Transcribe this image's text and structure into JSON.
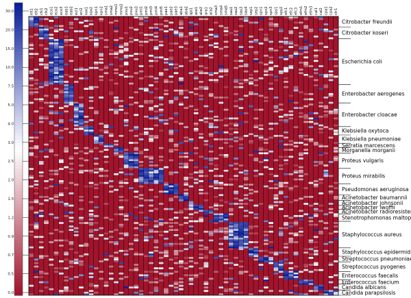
{
  "chart_data": {
    "type": "heatmap",
    "title": "",
    "xlabel": "",
    "ylabel": "",
    "colors": {
      "low": "#a0142c",
      "mid": "#ffffff",
      "high": "#0a1f9c",
      "grid": "#000000",
      "frame": "#000000"
    },
    "color_scale": {
      "ticks": [
        "30.0",
        "20.0",
        "15.0",
        "10.0",
        "7.5",
        "5.0",
        "4.0",
        "3.0",
        "2.5",
        "2.0",
        "1.5",
        "1.2",
        "0.9",
        "0.7",
        "0.5",
        "0.0"
      ],
      "values": [
        30.0,
        20.0,
        15.0,
        10.0,
        7.5,
        5.0,
        4.0,
        3.0,
        2.5,
        2.0,
        1.5,
        1.2,
        0.9,
        0.7,
        0.5,
        0.0
      ]
    },
    "column_labels": [
      "elt1",
      "elt2",
      "clk1",
      "clk2",
      "eco1",
      "eco2",
      "eco3",
      "eab1",
      "eab2",
      "ecl1",
      "ecl2",
      "kox1",
      "kox2",
      "kpn1",
      "kpn2",
      "sma1",
      "sma2",
      "mmo1",
      "mmo2",
      "pvu1",
      "pvu2",
      "pvu3",
      "pmi1",
      "pmi2",
      "pmi3",
      "pmi4",
      "pmi5",
      "pae1",
      "pae2",
      "pae3",
      "aba1",
      "aba2",
      "ajo1",
      "alw1",
      "alw2",
      "ara1",
      "ara2",
      "sma3",
      "sma4",
      "sma5",
      "sau1",
      "sau2",
      "sau3",
      "sau4",
      "sep1",
      "sep2",
      "spn1",
      "spn2",
      "spn3",
      "spy1",
      "spy2",
      "efc1",
      "efc2",
      "efc3",
      "efm1",
      "efm2",
      "efm3",
      "cal1",
      "cal2",
      "cpa1",
      "cpa2",
      "ctr1"
    ],
    "row_groups": [
      {
        "name": "Citrobacter freundii",
        "start": 0.0,
        "end": 0.038,
        "cols": [
          0,
          1
        ]
      },
      {
        "name": "Citrobacter koseri",
        "start": 0.038,
        "end": 0.08,
        "cols": [
          2,
          3
        ]
      },
      {
        "name": "Escherichia coli",
        "start": 0.08,
        "end": 0.245,
        "cols": [
          4,
          5,
          6
        ]
      },
      {
        "name": "Enterobacter aerogenes",
        "start": 0.245,
        "end": 0.31,
        "cols": [
          7,
          8
        ]
      },
      {
        "name": "Enterobacter cloacae",
        "start": 0.31,
        "end": 0.395,
        "cols": [
          9,
          10
        ]
      },
      {
        "name": "Klebsiella oxytoca",
        "start": 0.395,
        "end": 0.425,
        "cols": [
          11,
          12
        ]
      },
      {
        "name": "Klebsiella pneumoniae",
        "start": 0.425,
        "end": 0.455,
        "cols": [
          13,
          14
        ]
      },
      {
        "name": "Serratia marcescens",
        "start": 0.455,
        "end": 0.47,
        "cols": [
          15,
          16
        ]
      },
      {
        "name": "Morganella morganii",
        "start": 0.47,
        "end": 0.49,
        "cols": [
          17,
          18
        ]
      },
      {
        "name": "Proteus vulgaris",
        "start": 0.49,
        "end": 0.545,
        "cols": [
          19,
          20,
          21
        ]
      },
      {
        "name": "Proteus mirabilis",
        "start": 0.545,
        "end": 0.6,
        "cols": [
          22,
          23,
          24,
          25,
          26
        ]
      },
      {
        "name": "Pseudomonas aeruginosa",
        "start": 0.6,
        "end": 0.64,
        "cols": [
          27,
          28,
          29
        ]
      },
      {
        "name": "Acinetobacter baumannii",
        "start": 0.64,
        "end": 0.66,
        "cols": [
          30,
          31
        ]
      },
      {
        "name": "Acinetobacter johnsonii",
        "start": 0.66,
        "end": 0.678,
        "cols": [
          32
        ]
      },
      {
        "name": "Acinetobacter lwoffii",
        "start": 0.678,
        "end": 0.692,
        "cols": [
          33,
          34
        ]
      },
      {
        "name": "Acinetobacter radioresistens",
        "start": 0.692,
        "end": 0.708,
        "cols": [
          35,
          36
        ]
      },
      {
        "name": "Stenotrophomonas maltophilia",
        "start": 0.708,
        "end": 0.735,
        "cols": [
          37,
          38,
          39
        ]
      },
      {
        "name": "Staphylococcus aureus",
        "start": 0.735,
        "end": 0.83,
        "cols": [
          40,
          41,
          42,
          43
        ]
      },
      {
        "name": "Staphylococcus epidermidis",
        "start": 0.83,
        "end": 0.86,
        "cols": [
          44,
          45
        ]
      },
      {
        "name": "Streptococcus pneumoniae",
        "start": 0.86,
        "end": 0.88,
        "cols": [
          46,
          47,
          48
        ]
      },
      {
        "name": "Streptococcus pyogenes",
        "start": 0.88,
        "end": 0.915,
        "cols": [
          49,
          50
        ]
      },
      {
        "name": "Enterococcus faecalis",
        "start": 0.915,
        "end": 0.945,
        "cols": [
          51,
          52,
          53
        ]
      },
      {
        "name": "Enterococcus faecium",
        "start": 0.945,
        "end": 0.96,
        "cols": [
          54,
          55,
          56
        ]
      },
      {
        "name": "Candida albicans",
        "start": 0.96,
        "end": 0.982,
        "cols": [
          57,
          58
        ]
      },
      {
        "name": "Candida parapsilosis",
        "start": 0.982,
        "end": 1.0,
        "cols": [
          59,
          60,
          61
        ]
      }
    ]
  }
}
